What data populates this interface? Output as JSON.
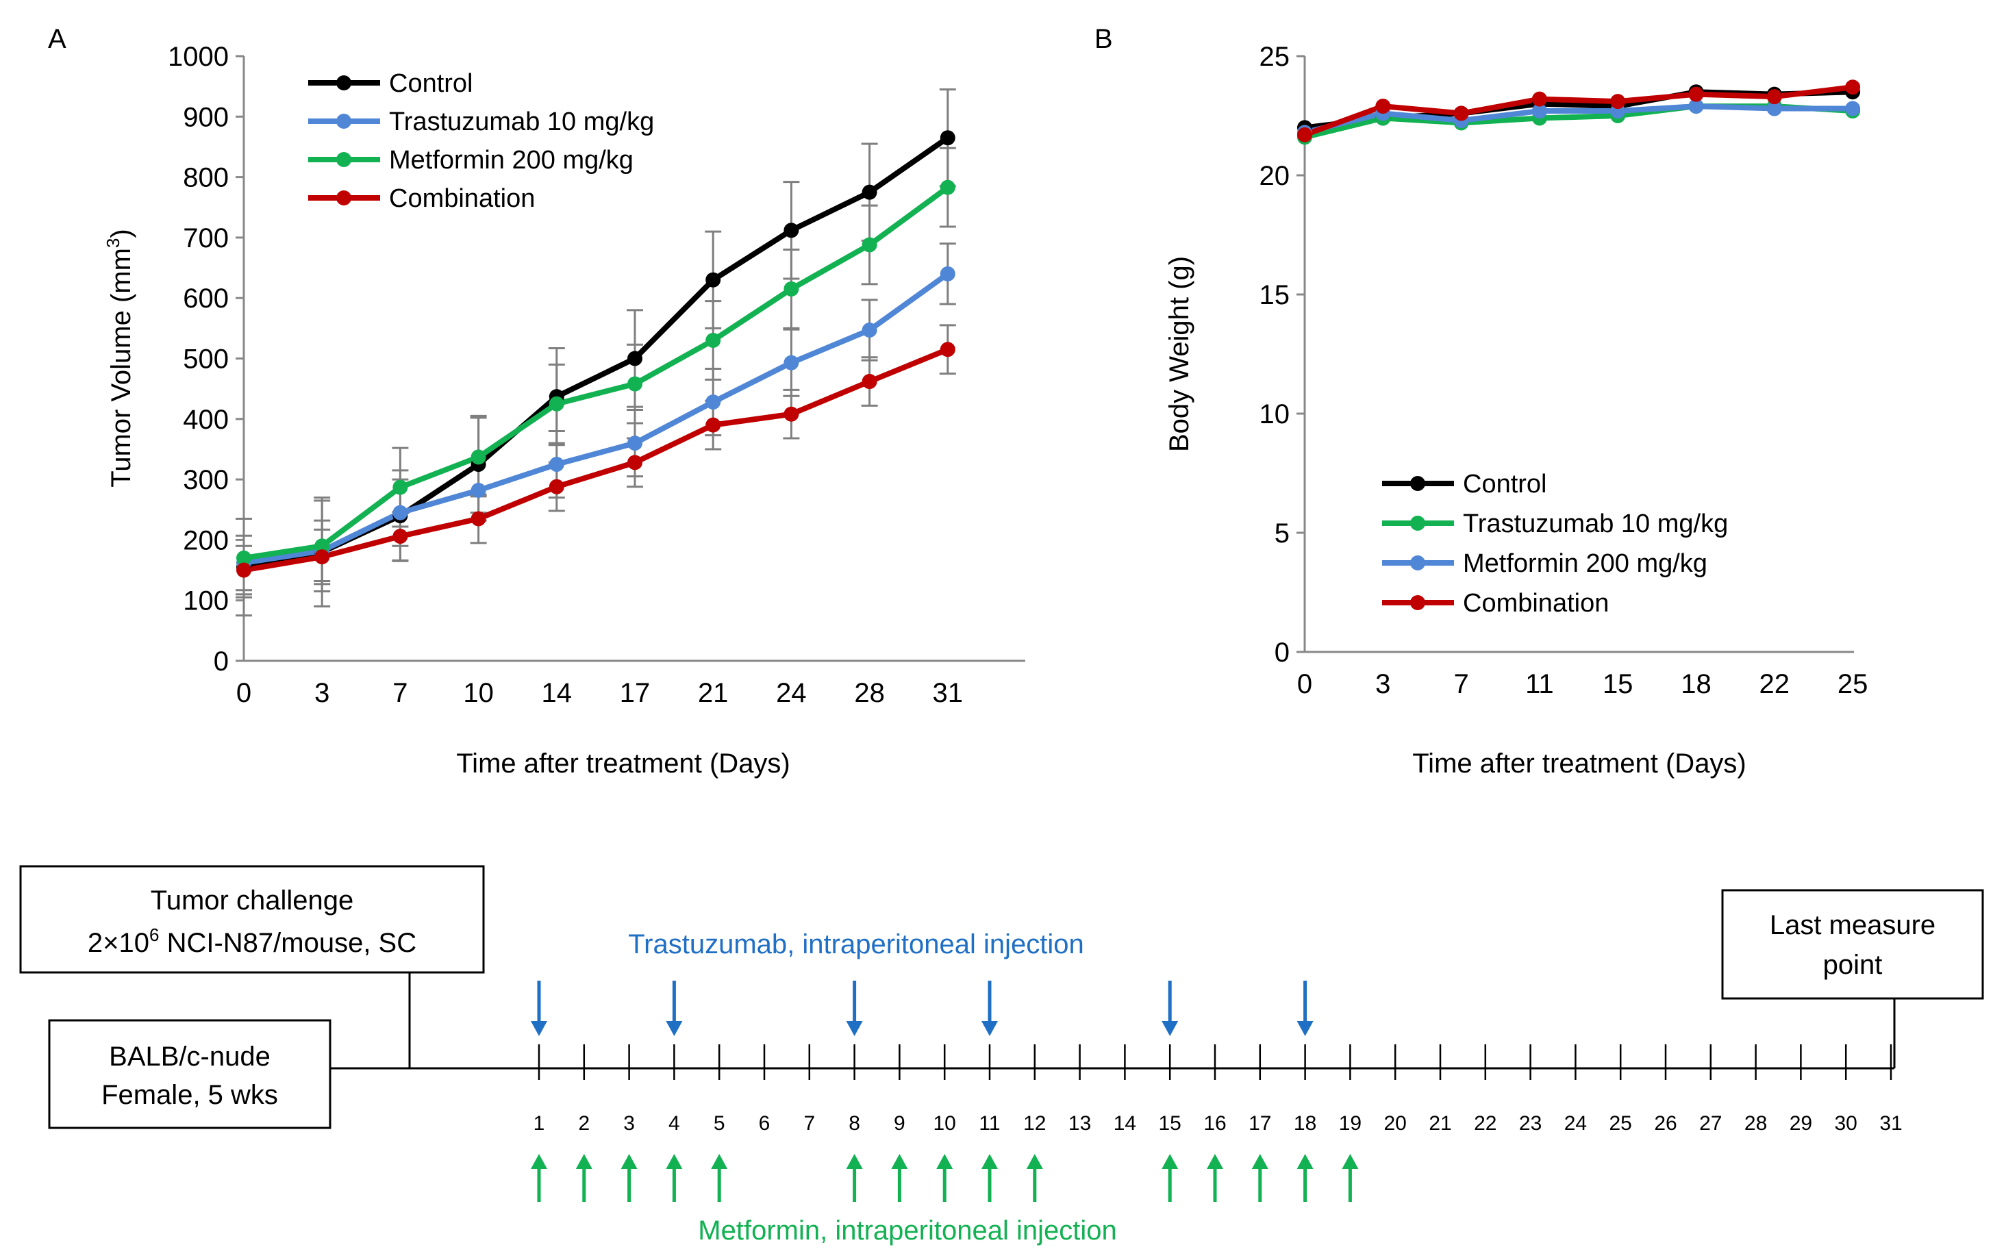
{
  "colors": {
    "black": "#000000",
    "blue": "#1f6fc5",
    "light_blue": "#4f86d6",
    "green": "#12b152",
    "red": "#c00000",
    "error_bar": "#7f7f7f",
    "axis": "#888888"
  },
  "chart_data": [
    {
      "type": "line",
      "panel": "A",
      "title": "",
      "xlabel": "Time after treatment (Days)",
      "ylabel_main": "Tumor Volume (mm",
      "ylabel_sup": "3",
      "ylabel_end": ")",
      "categories": [
        "0",
        "3",
        "7",
        "10",
        "14",
        "17",
        "21",
        "24",
        "28",
        "31"
      ],
      "ylim": [
        0,
        1000
      ],
      "yticks": [
        0,
        100,
        200,
        300,
        400,
        500,
        600,
        700,
        800,
        900,
        1000
      ],
      "legend_position": "top-left",
      "series": [
        {
          "name": "Control",
          "color": "#000000",
          "values": [
            155,
            180,
            240,
            325,
            437,
            500,
            630,
            712,
            775,
            865
          ],
          "errors": [
            80,
            90,
            75,
            80,
            80,
            80,
            80,
            80,
            80,
            80
          ]
        },
        {
          "name": "Trastuzumab 10 mg/kg",
          "color": "#4f86d6",
          "values": [
            162,
            182,
            245,
            282,
            325,
            360,
            428,
            493,
            547,
            640
          ],
          "errors": [
            45,
            50,
            55,
            50,
            55,
            55,
            55,
            55,
            50,
            50
          ]
        },
        {
          "name": "Metformin 200 mg/kg",
          "color": "#12b152",
          "values": [
            170,
            190,
            287,
            337,
            425,
            458,
            530,
            615,
            688,
            783
          ],
          "errors": [
            65,
            75,
            65,
            65,
            65,
            65,
            65,
            65,
            65,
            65
          ]
        },
        {
          "name": "Combination",
          "color": "#c00000",
          "values": [
            150,
            172,
            206,
            235,
            288,
            328,
            390,
            408,
            462,
            515
          ],
          "errors": [
            40,
            45,
            40,
            40,
            40,
            40,
            40,
            40,
            40,
            40
          ]
        }
      ]
    },
    {
      "type": "line",
      "panel": "B",
      "title": "",
      "xlabel": "Time after treatment (Days)",
      "ylabel": "Body Weight (g)",
      "categories": [
        "0",
        "3",
        "7",
        "11",
        "15",
        "18",
        "22",
        "25"
      ],
      "ylim": [
        0,
        25
      ],
      "yticks": [
        0,
        5,
        10,
        15,
        20,
        25
      ],
      "legend_position": "bottom-left",
      "series": [
        {
          "name": "Control",
          "color": "#000000",
          "values": [
            22.0,
            22.4,
            22.6,
            23.0,
            22.9,
            23.5,
            23.4,
            23.5
          ]
        },
        {
          "name": "Trastuzumab 10 mg/kg",
          "color": "#12b152",
          "values": [
            21.6,
            22.4,
            22.2,
            22.4,
            22.5,
            22.9,
            22.9,
            22.7
          ]
        },
        {
          "name": "Metformin 200 mg/kg",
          "color": "#4f86d6",
          "values": [
            21.8,
            22.6,
            22.3,
            22.7,
            22.7,
            22.9,
            22.8,
            22.8
          ]
        },
        {
          "name": "Combination",
          "color": "#c00000",
          "values": [
            21.7,
            22.9,
            22.6,
            23.2,
            23.1,
            23.4,
            23.3,
            23.7
          ]
        }
      ]
    }
  ],
  "timeline": {
    "box_left_line1": "BALB/c-nude",
    "box_left_line2": "Female, 5 wks",
    "challenge_line1": "Tumor challenge",
    "challenge_line2_pre": "2×10",
    "challenge_line2_sup": "6",
    "challenge_line2_post": " NCI-N87/mouse, SC",
    "last_line1": "Last measure",
    "last_line2": "point",
    "trastuzumab_label": "Trastuzumab, intraperitoneal injection",
    "metformin_label": "Metformin, intraperitoneal injection",
    "days": [
      "1",
      "2",
      "3",
      "4",
      "5",
      "6",
      "7",
      "8",
      "9",
      "10",
      "11",
      "12",
      "13",
      "14",
      "15",
      "16",
      "17",
      "18",
      "19",
      "20",
      "21",
      "22",
      "23",
      "24",
      "25",
      "26",
      "27",
      "28",
      "29",
      "30",
      "31"
    ],
    "trastuzumab_days": [
      1,
      4,
      8,
      11,
      15,
      18
    ],
    "metformin_days": [
      1,
      2,
      3,
      4,
      5,
      8,
      9,
      10,
      11,
      12,
      15,
      16,
      17,
      18,
      19
    ]
  }
}
